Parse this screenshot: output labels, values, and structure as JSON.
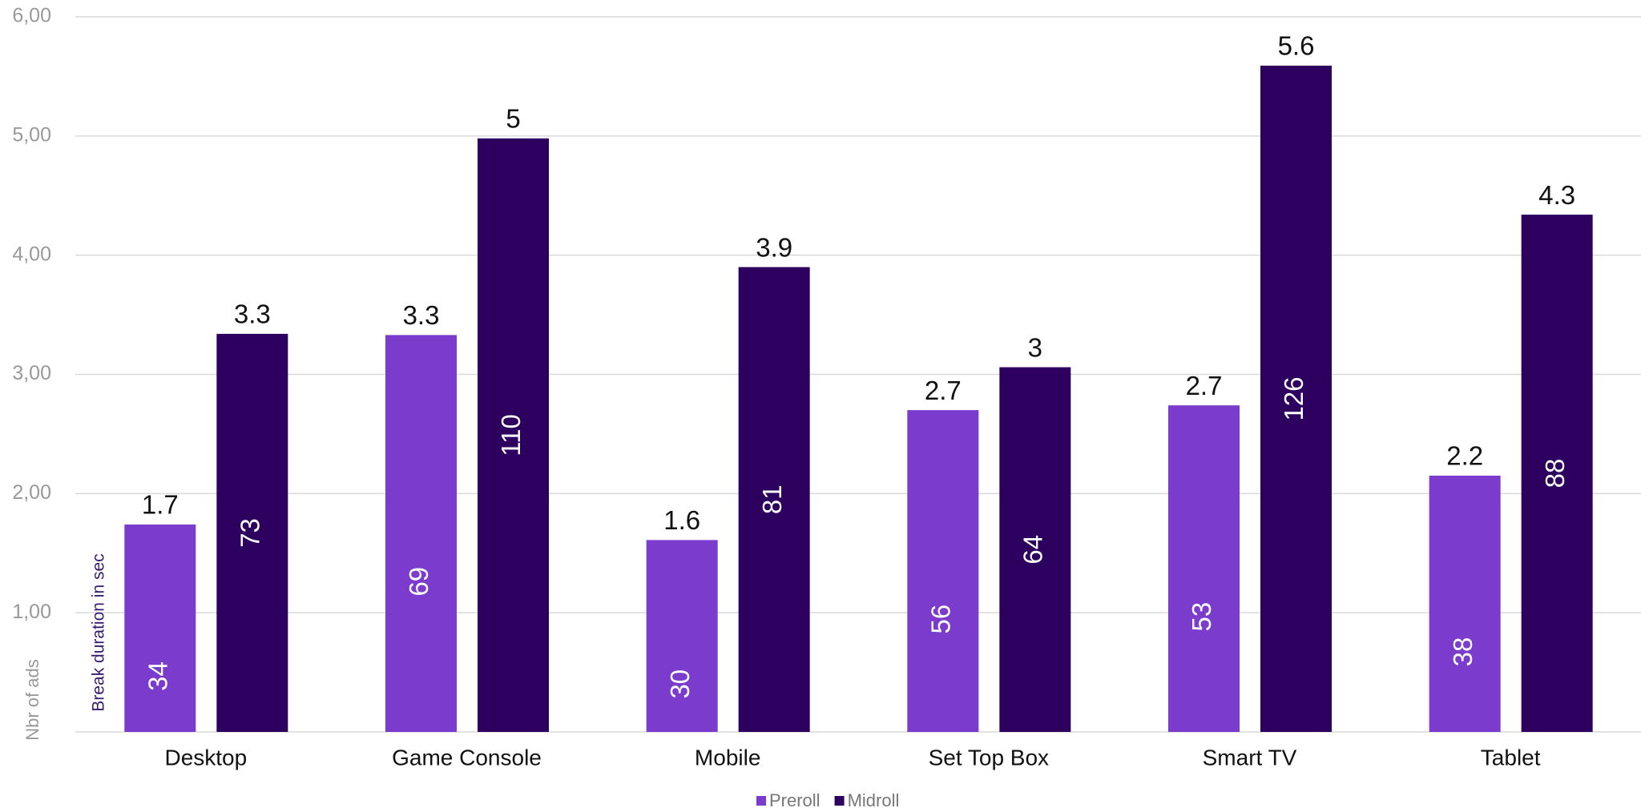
{
  "chart_data": {
    "type": "bar",
    "y_axis_label": "Nbr of ads",
    "annotation": "Break duration in sec",
    "categories": [
      "Desktop",
      "Game Console",
      "Mobile",
      "Set Top Box",
      "Smart TV",
      "Tablet"
    ],
    "series": [
      {
        "name": "Preroll",
        "color": "#7b3bcc",
        "values": [
          1.74,
          3.33,
          1.61,
          2.7,
          2.74,
          2.15
        ],
        "value_labels": [
          "1.7",
          "3.3",
          "1.6",
          "2.7",
          "2.7",
          "2.2"
        ],
        "ads": [
          34,
          69,
          30,
          56,
          53,
          38
        ]
      },
      {
        "name": "Midroll",
        "color": "#2d0060",
        "values": [
          3.34,
          4.98,
          3.9,
          3.06,
          5.59,
          4.34
        ],
        "value_labels": [
          "3.3",
          "5",
          "3.9",
          "3",
          "5.6",
          "4.3"
        ],
        "ads": [
          73,
          110,
          81,
          64,
          126,
          88
        ]
      }
    ],
    "ylim": [
      0,
      6
    ],
    "yticks": [
      {
        "value": 1,
        "label": "1,00"
      },
      {
        "value": 2,
        "label": "2,00"
      },
      {
        "value": 3,
        "label": "3,00"
      },
      {
        "value": 4,
        "label": "4,00"
      },
      {
        "value": 5,
        "label": "5,00"
      },
      {
        "value": 6,
        "label": "6,00"
      }
    ],
    "grid": true
  }
}
